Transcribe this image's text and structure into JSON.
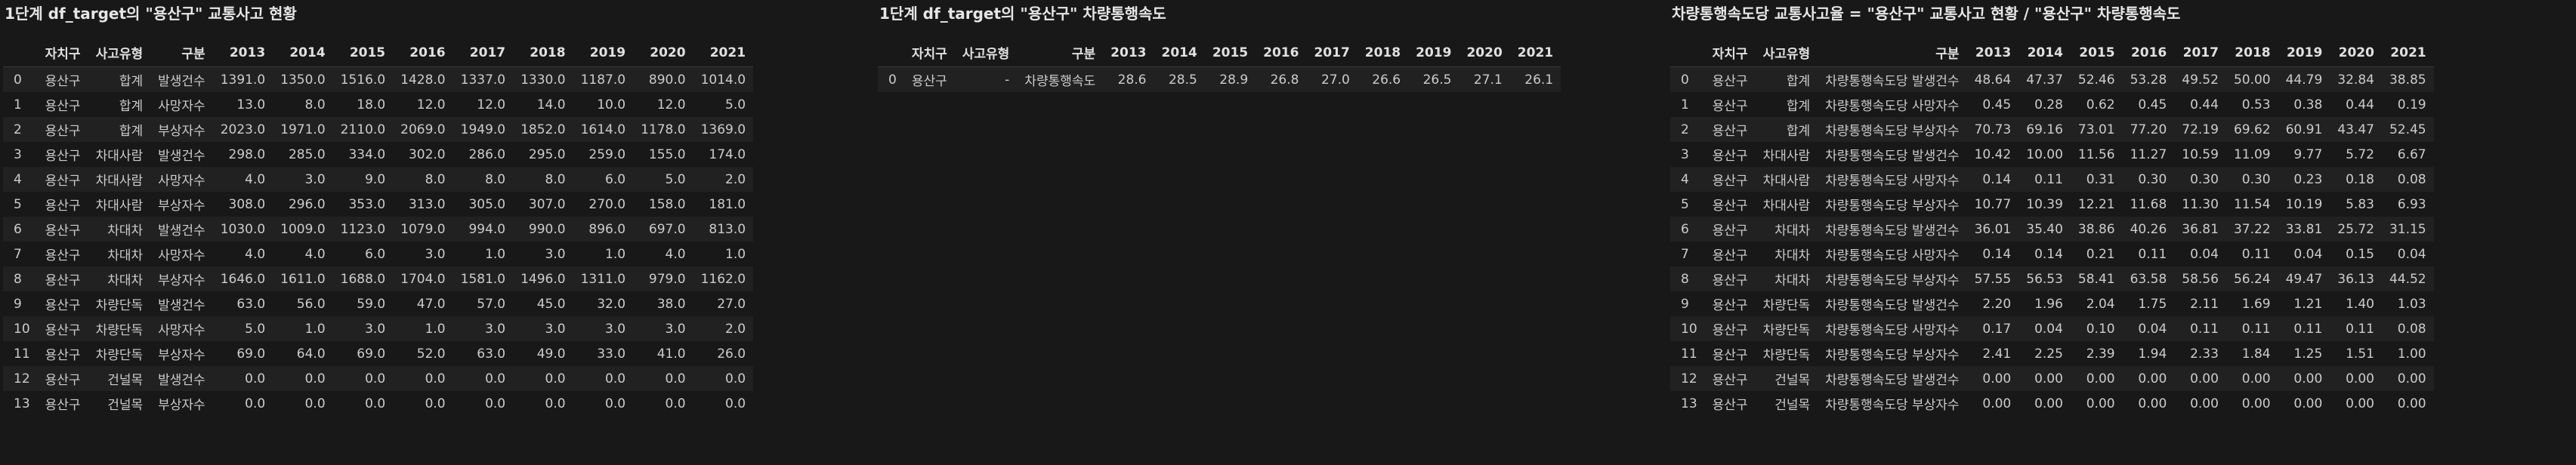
{
  "panels": [
    {
      "title": "1단계 df_target의 \"용산구\" 교통사고 현황",
      "columns": [
        "",
        "자치구",
        "사고유형",
        "구분",
        "2013",
        "2014",
        "2015",
        "2016",
        "2017",
        "2018",
        "2019",
        "2020",
        "2021"
      ],
      "rows": [
        [
          "0",
          "용산구",
          "합계",
          "발생건수",
          "1391.0",
          "1350.0",
          "1516.0",
          "1428.0",
          "1337.0",
          "1330.0",
          "1187.0",
          "890.0",
          "1014.0"
        ],
        [
          "1",
          "용산구",
          "합계",
          "사망자수",
          "13.0",
          "8.0",
          "18.0",
          "12.0",
          "12.0",
          "14.0",
          "10.0",
          "12.0",
          "5.0"
        ],
        [
          "2",
          "용산구",
          "합계",
          "부상자수",
          "2023.0",
          "1971.0",
          "2110.0",
          "2069.0",
          "1949.0",
          "1852.0",
          "1614.0",
          "1178.0",
          "1369.0"
        ],
        [
          "3",
          "용산구",
          "차대사람",
          "발생건수",
          "298.0",
          "285.0",
          "334.0",
          "302.0",
          "286.0",
          "295.0",
          "259.0",
          "155.0",
          "174.0"
        ],
        [
          "4",
          "용산구",
          "차대사람",
          "사망자수",
          "4.0",
          "3.0",
          "9.0",
          "8.0",
          "8.0",
          "8.0",
          "6.0",
          "5.0",
          "2.0"
        ],
        [
          "5",
          "용산구",
          "차대사람",
          "부상자수",
          "308.0",
          "296.0",
          "353.0",
          "313.0",
          "305.0",
          "307.0",
          "270.0",
          "158.0",
          "181.0"
        ],
        [
          "6",
          "용산구",
          "차대차",
          "발생건수",
          "1030.0",
          "1009.0",
          "1123.0",
          "1079.0",
          "994.0",
          "990.0",
          "896.0",
          "697.0",
          "813.0"
        ],
        [
          "7",
          "용산구",
          "차대차",
          "사망자수",
          "4.0",
          "4.0",
          "6.0",
          "3.0",
          "1.0",
          "3.0",
          "1.0",
          "4.0",
          "1.0"
        ],
        [
          "8",
          "용산구",
          "차대차",
          "부상자수",
          "1646.0",
          "1611.0",
          "1688.0",
          "1704.0",
          "1581.0",
          "1496.0",
          "1311.0",
          "979.0",
          "1162.0"
        ],
        [
          "9",
          "용산구",
          "차량단독",
          "발생건수",
          "63.0",
          "56.0",
          "59.0",
          "47.0",
          "57.0",
          "45.0",
          "32.0",
          "38.0",
          "27.0"
        ],
        [
          "10",
          "용산구",
          "차량단독",
          "사망자수",
          "5.0",
          "1.0",
          "3.0",
          "1.0",
          "3.0",
          "3.0",
          "3.0",
          "3.0",
          "2.0"
        ],
        [
          "11",
          "용산구",
          "차량단독",
          "부상자수",
          "69.0",
          "64.0",
          "69.0",
          "52.0",
          "63.0",
          "49.0",
          "33.0",
          "41.0",
          "26.0"
        ],
        [
          "12",
          "용산구",
          "건널목",
          "발생건수",
          "0.0",
          "0.0",
          "0.0",
          "0.0",
          "0.0",
          "0.0",
          "0.0",
          "0.0",
          "0.0"
        ],
        [
          "13",
          "용산구",
          "건널목",
          "부상자수",
          "0.0",
          "0.0",
          "0.0",
          "0.0",
          "0.0",
          "0.0",
          "0.0",
          "0.0",
          "0.0"
        ]
      ]
    },
    {
      "title": "1단계 df_target의 \"용산구\" 차량통행속도",
      "columns": [
        "",
        "자치구",
        "사고유형",
        "구분",
        "2013",
        "2014",
        "2015",
        "2016",
        "2017",
        "2018",
        "2019",
        "2020",
        "2021"
      ],
      "rows": [
        [
          "0",
          "용산구",
          "-",
          "차량통행속도",
          "28.6",
          "28.5",
          "28.9",
          "26.8",
          "27.0",
          "26.6",
          "26.5",
          "27.1",
          "26.1"
        ]
      ]
    },
    {
      "title": "차량통행속도당 교통사고율 = \"용산구\" 교통사고 현황 / \"용산구\" 차량통행속도",
      "columns": [
        "",
        "자치구",
        "사고유형",
        "구분",
        "2013",
        "2014",
        "2015",
        "2016",
        "2017",
        "2018",
        "2019",
        "2020",
        "2021"
      ],
      "rows": [
        [
          "0",
          "용산구",
          "합계",
          "차량통행속도당 발생건수",
          "48.64",
          "47.37",
          "52.46",
          "53.28",
          "49.52",
          "50.00",
          "44.79",
          "32.84",
          "38.85"
        ],
        [
          "1",
          "용산구",
          "합계",
          "차량통행속도당 사망자수",
          "0.45",
          "0.28",
          "0.62",
          "0.45",
          "0.44",
          "0.53",
          "0.38",
          "0.44",
          "0.19"
        ],
        [
          "2",
          "용산구",
          "합계",
          "차량통행속도당 부상자수",
          "70.73",
          "69.16",
          "73.01",
          "77.20",
          "72.19",
          "69.62",
          "60.91",
          "43.47",
          "52.45"
        ],
        [
          "3",
          "용산구",
          "차대사람",
          "차량통행속도당 발생건수",
          "10.42",
          "10.00",
          "11.56",
          "11.27",
          "10.59",
          "11.09",
          "9.77",
          "5.72",
          "6.67"
        ],
        [
          "4",
          "용산구",
          "차대사람",
          "차량통행속도당 사망자수",
          "0.14",
          "0.11",
          "0.31",
          "0.30",
          "0.30",
          "0.30",
          "0.23",
          "0.18",
          "0.08"
        ],
        [
          "5",
          "용산구",
          "차대사람",
          "차량통행속도당 부상자수",
          "10.77",
          "10.39",
          "12.21",
          "11.68",
          "11.30",
          "11.54",
          "10.19",
          "5.83",
          "6.93"
        ],
        [
          "6",
          "용산구",
          "차대차",
          "차량통행속도당 발생건수",
          "36.01",
          "35.40",
          "38.86",
          "40.26",
          "36.81",
          "37.22",
          "33.81",
          "25.72",
          "31.15"
        ],
        [
          "7",
          "용산구",
          "차대차",
          "차량통행속도당 사망자수",
          "0.14",
          "0.14",
          "0.21",
          "0.11",
          "0.04",
          "0.11",
          "0.04",
          "0.15",
          "0.04"
        ],
        [
          "8",
          "용산구",
          "차대차",
          "차량통행속도당 부상자수",
          "57.55",
          "56.53",
          "58.41",
          "63.58",
          "58.56",
          "56.24",
          "49.47",
          "36.13",
          "44.52"
        ],
        [
          "9",
          "용산구",
          "차량단독",
          "차량통행속도당 발생건수",
          "2.20",
          "1.96",
          "2.04",
          "1.75",
          "2.11",
          "1.69",
          "1.21",
          "1.40",
          "1.03"
        ],
        [
          "10",
          "용산구",
          "차량단독",
          "차량통행속도당 사망자수",
          "0.17",
          "0.04",
          "0.10",
          "0.04",
          "0.11",
          "0.11",
          "0.11",
          "0.11",
          "0.08"
        ],
        [
          "11",
          "용산구",
          "차량단독",
          "차량통행속도당 부상자수",
          "2.41",
          "2.25",
          "2.39",
          "1.94",
          "2.33",
          "1.84",
          "1.25",
          "1.51",
          "1.00"
        ],
        [
          "12",
          "용산구",
          "건널목",
          "차량통행속도당 발생건수",
          "0.00",
          "0.00",
          "0.00",
          "0.00",
          "0.00",
          "0.00",
          "0.00",
          "0.00",
          "0.00"
        ],
        [
          "13",
          "용산구",
          "건널목",
          "차량통행속도당 부상자수",
          "0.00",
          "0.00",
          "0.00",
          "0.00",
          "0.00",
          "0.00",
          "0.00",
          "0.00",
          "0.00"
        ]
      ]
    }
  ]
}
